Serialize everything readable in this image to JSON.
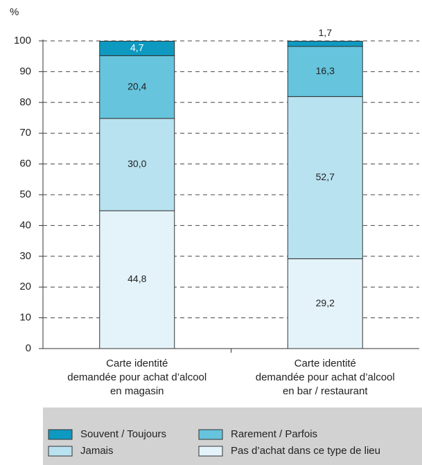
{
  "chart_data": {
    "type": "stacked_bar",
    "ylabel": "%",
    "categories": [
      "Carte identité\ndemandée pour achat d’alcool\nen magasin",
      "Carte identité\ndemandée pour achat d’alcool\nen bar / restaurant"
    ],
    "series": [
      {
        "name": "Pas d’achat dans ce type de lieu",
        "color": "#e3f3f9",
        "values": [
          44.8,
          29.2
        ],
        "value_labels": [
          "44,8",
          "29,2"
        ]
      },
      {
        "name": "Jamais",
        "color": "#b8e2f0",
        "values": [
          30.0,
          52.7
        ],
        "value_labels": [
          "30,0",
          "52,7"
        ]
      },
      {
        "name": "Rarement / Parfois",
        "color": "#66c4dd",
        "values": [
          20.4,
          16.3
        ],
        "value_labels": [
          "20,4",
          "16,3"
        ]
      },
      {
        "name": "Souvent / Toujours",
        "color": "#0e9ac0",
        "values": [
          4.7,
          1.7
        ],
        "value_labels": [
          "4,7",
          "1,7"
        ]
      }
    ],
    "ylim": [
      0,
      100
    ],
    "yticks": [
      0,
      10,
      20,
      30,
      40,
      50,
      60,
      70,
      80,
      90,
      100
    ],
    "grid": true
  }
}
